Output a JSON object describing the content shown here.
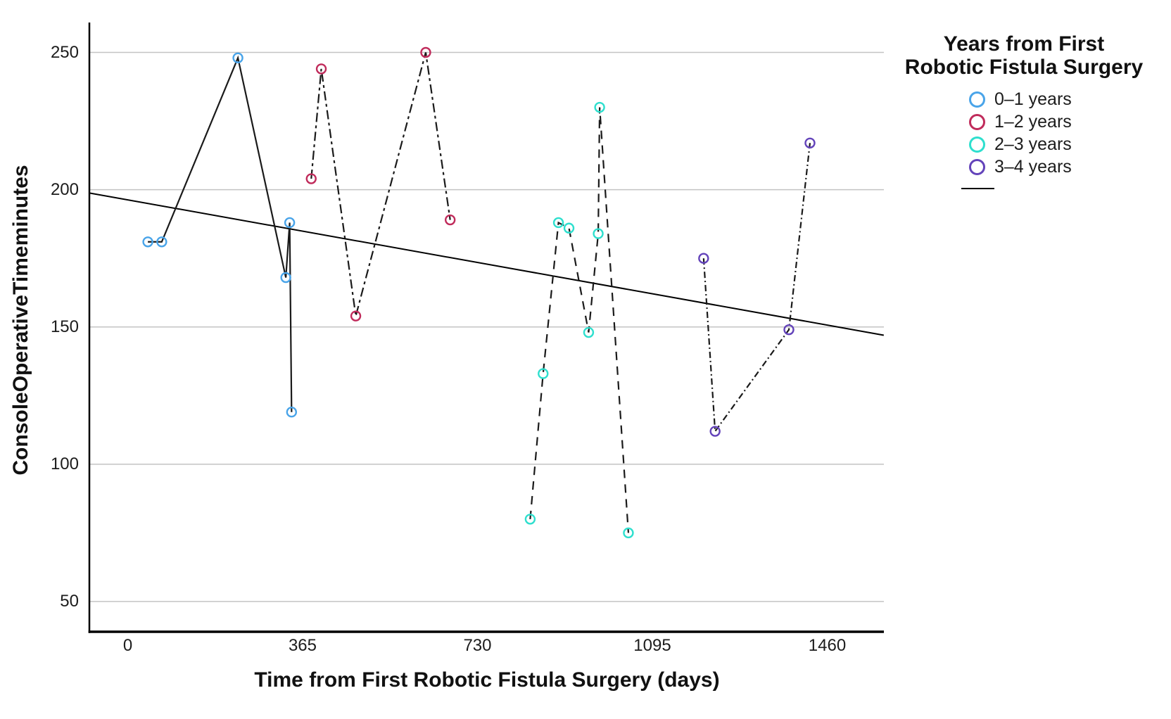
{
  "chart_data": {
    "type": "line",
    "title": "",
    "xlabel": "Time from First Robotic Fistula Surgery (days)",
    "ylabel": "ConsoleOperativeTimeminutes",
    "x_ticks": [
      0,
      365,
      730,
      1095,
      1460
    ],
    "y_ticks": [
      50,
      100,
      150,
      200,
      250
    ],
    "xlim": [
      -80,
      1578
    ],
    "ylim": [
      39,
      261
    ],
    "grid": "horizontal-only",
    "gridline_color": "#c3c3c3",
    "line_color": "#1a1a1a",
    "legend": {
      "title": "Years from First Robotic Fistula Surgery",
      "title_lines": [
        "Years from First",
        "Robotic Fistula Surgery"
      ],
      "position": "top-right-outside",
      "items": [
        {
          "label": "0–1 years",
          "color": "#49A4E9",
          "marker": "circle"
        },
        {
          "label": "1–2 years",
          "color": "#C02B5B",
          "marker": "circle"
        },
        {
          "label": "2–3 years",
          "color": "#2EDFCE",
          "marker": "circle"
        },
        {
          "label": "3–4 years",
          "color": "#6343BA",
          "marker": "circle"
        }
      ],
      "trend_sample": "solid-line"
    },
    "series": [
      {
        "name": "0–1 years",
        "color": "#49A4E9",
        "line_style": "solid",
        "points": [
          [
            42,
            181
          ],
          [
            71,
            181
          ],
          [
            230,
            248
          ],
          [
            330,
            168
          ],
          [
            338,
            188
          ],
          [
            342,
            119
          ]
        ]
      },
      {
        "name": "1–2 years",
        "color": "#C02B5B",
        "line_style": "dash-dot",
        "points": [
          [
            383,
            204
          ],
          [
            404,
            244
          ],
          [
            476,
            154
          ],
          [
            622,
            250
          ],
          [
            673,
            189
          ]
        ]
      },
      {
        "name": "2–3 years",
        "color": "#2EDFCE",
        "line_style": "dashed",
        "points": [
          [
            840,
            80
          ],
          [
            867,
            133
          ],
          [
            899,
            188
          ],
          [
            921,
            186
          ],
          [
            962,
            148
          ],
          [
            982,
            184
          ],
          [
            985,
            230
          ],
          [
            1045,
            75
          ]
        ]
      },
      {
        "name": "3–4 years",
        "color": "#6343BA",
        "line_style": "dash-dot-dot",
        "points": [
          [
            1202,
            175
          ],
          [
            1226,
            112
          ],
          [
            1380,
            149
          ],
          [
            1424,
            217
          ]
        ]
      }
    ],
    "trend_line": {
      "style": "solid",
      "color": "#000000",
      "points": [
        [
          -80,
          198.8
        ],
        [
          1578,
          147.0
        ]
      ]
    }
  }
}
